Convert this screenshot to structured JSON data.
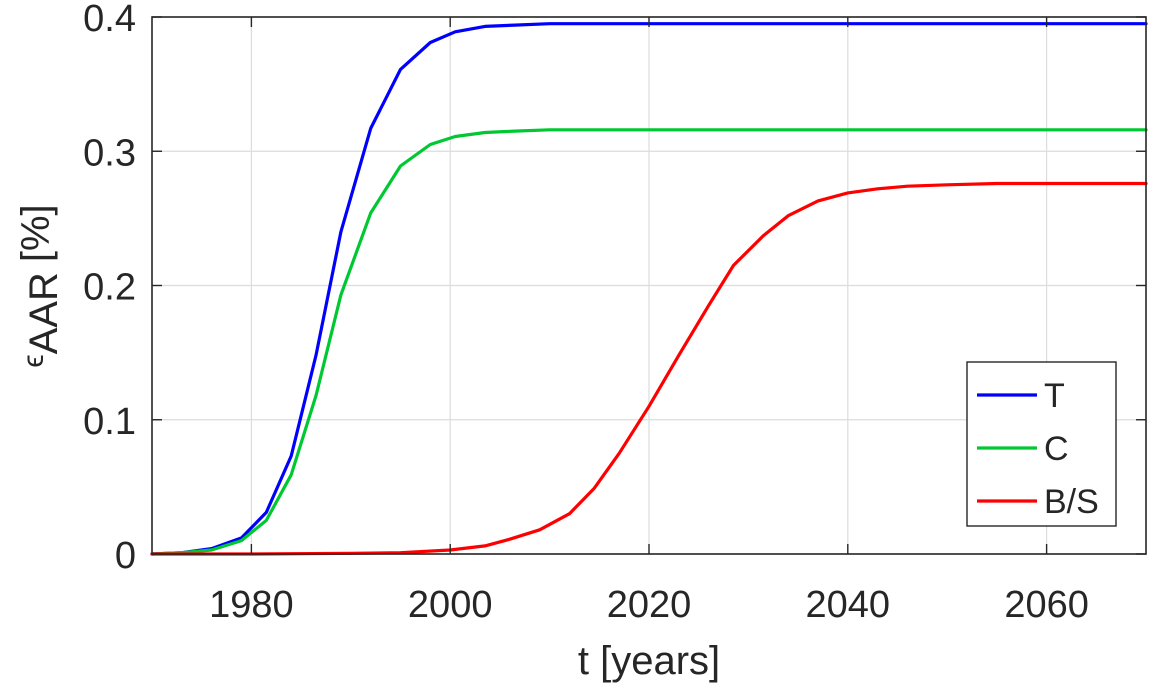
{
  "chart_data": {
    "type": "line",
    "xlabel": "t [years]",
    "ylabel": {
      "symbol": "ϵ",
      "subscript": "AAR",
      "unit": "[%]"
    },
    "xlim": [
      1970,
      2070
    ],
    "ylim": [
      0,
      0.4
    ],
    "xticks": [
      1980,
      2000,
      2020,
      2040,
      2060
    ],
    "yticks": [
      0,
      0.1,
      0.2,
      0.3,
      0.4
    ],
    "ytick_labels": [
      "0",
      "0.1",
      "0.2",
      "0.3",
      "0.4"
    ],
    "grid": true,
    "legend_position": "bottom-right",
    "series": [
      {
        "name": "T",
        "color": "#0000ff",
        "x": [
          1970,
          1973,
          1976,
          1979,
          1981.5,
          1984,
          1986.5,
          1989,
          1992,
          1995,
          1998,
          2000.5,
          2003.5,
          2006.5,
          2010,
          2015,
          2020,
          2030,
          2040,
          2050,
          2060,
          2070
        ],
        "y": [
          0.0,
          0.001,
          0.004,
          0.012,
          0.031,
          0.073,
          0.148,
          0.24,
          0.317,
          0.361,
          0.381,
          0.389,
          0.393,
          0.394,
          0.395,
          0.395,
          0.395,
          0.395,
          0.395,
          0.395,
          0.395,
          0.395
        ]
      },
      {
        "name": "C",
        "color": "#00c832",
        "x": [
          1970,
          1973,
          1976,
          1979,
          1981.5,
          1984,
          1986.5,
          1989,
          1992,
          1995,
          1998,
          2000.5,
          2003.5,
          2006.5,
          2010,
          2015,
          2020,
          2030,
          2040,
          2050,
          2060,
          2070
        ],
        "y": [
          0.0,
          0.001,
          0.003,
          0.01,
          0.025,
          0.059,
          0.118,
          0.193,
          0.254,
          0.289,
          0.305,
          0.311,
          0.314,
          0.315,
          0.316,
          0.316,
          0.316,
          0.316,
          0.316,
          0.316,
          0.316,
          0.316
        ]
      },
      {
        "name": "B/S",
        "color": "#ff0000",
        "x": [
          1970,
          1980,
          1990,
          1995,
          2000,
          2003.5,
          2006,
          2009,
          2012,
          2014.5,
          2017,
          2020,
          2023,
          2026,
          2028.5,
          2031.5,
          2034,
          2037,
          2040,
          2043,
          2046,
          2050,
          2055,
          2060,
          2065,
          2070
        ],
        "y": [
          0.0,
          0.0,
          0.0005,
          0.001,
          0.003,
          0.006,
          0.011,
          0.018,
          0.03,
          0.049,
          0.075,
          0.11,
          0.148,
          0.185,
          0.215,
          0.237,
          0.252,
          0.263,
          0.269,
          0.272,
          0.274,
          0.275,
          0.276,
          0.276,
          0.276,
          0.276
        ]
      }
    ]
  }
}
